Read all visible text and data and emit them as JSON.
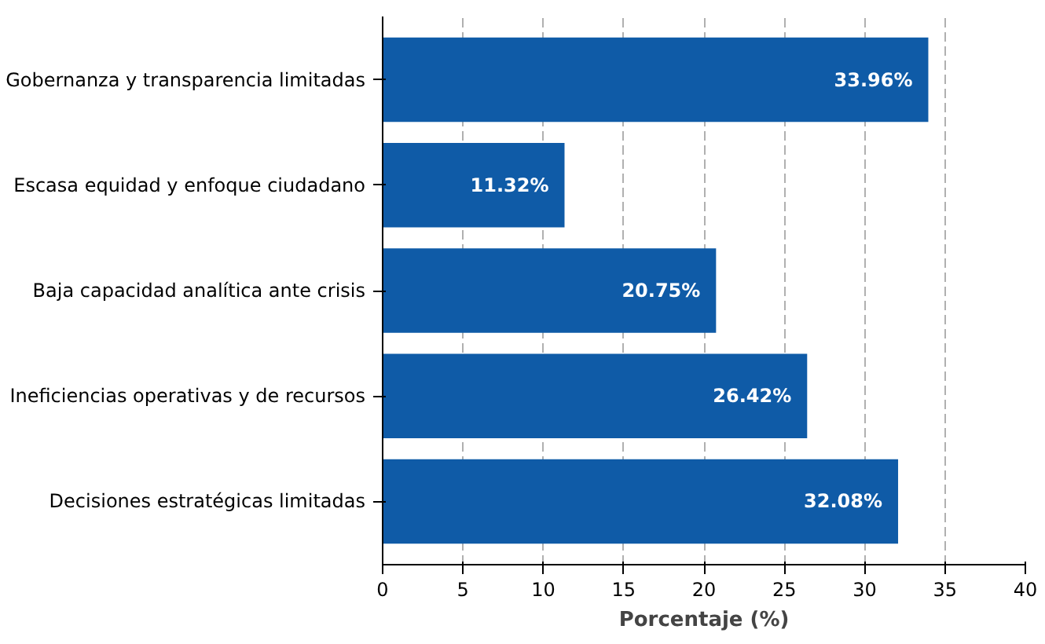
{
  "chart_data": {
    "type": "bar",
    "orientation": "horizontal",
    "categories": [
      "Gobernanza y transparencia limitadas",
      "Escasa equidad y enfoque ciudadano",
      "Baja capacidad analítica ante crisis",
      "Ineficiencias operativas y de recursos",
      "Decisiones estratégicas limitadas"
    ],
    "values": [
      33.96,
      11.32,
      20.75,
      26.42,
      32.08
    ],
    "value_labels": [
      "33.96%",
      "11.32%",
      "20.75%",
      "26.42%",
      "32.08%"
    ],
    "color": "#0f5ba7",
    "xlabel": "Porcentaje (%)",
    "xlim": [
      0,
      40
    ],
    "xticks": [
      0,
      5,
      10,
      15,
      20,
      25,
      30,
      35,
      40
    ],
    "grid": "x"
  }
}
